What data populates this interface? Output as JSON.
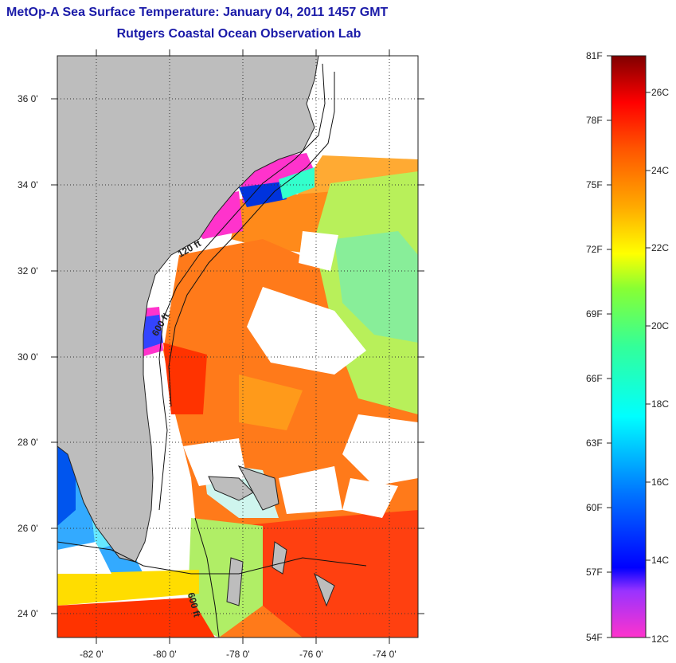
{
  "title": "MetOp-A Sea Surface Temperature:  January 04, 2011 1457 GMT",
  "subtitle": "Rutgers Coastal Ocean Observation Lab",
  "lat_labels": [
    "36 0'",
    "34 0'",
    "32 0'",
    "30 0'",
    "28 0'",
    "26 0'",
    "24 0'"
  ],
  "lon_labels": [
    "-82 0'",
    "-80 0'",
    "-78 0'",
    "-76 0'",
    "-74 0'"
  ],
  "contour_labels": [
    "120 ft",
    "600 ft",
    "600 ft"
  ],
  "colorbar": {
    "f_labels": [
      "81F",
      "78F",
      "75F",
      "72F",
      "69F",
      "66F",
      "63F",
      "60F",
      "57F",
      "54F"
    ],
    "c_labels": [
      "26C",
      "24C",
      "22C",
      "20C",
      "18C",
      "16C",
      "14C",
      "12C"
    ],
    "range_c": [
      12,
      27
    ]
  },
  "colors": {
    "title": "#1a1aa8",
    "land": "#bdbdbd",
    "warm": "#ff3300",
    "cool": "#00e5ff",
    "cold": "#ff33cc"
  }
}
